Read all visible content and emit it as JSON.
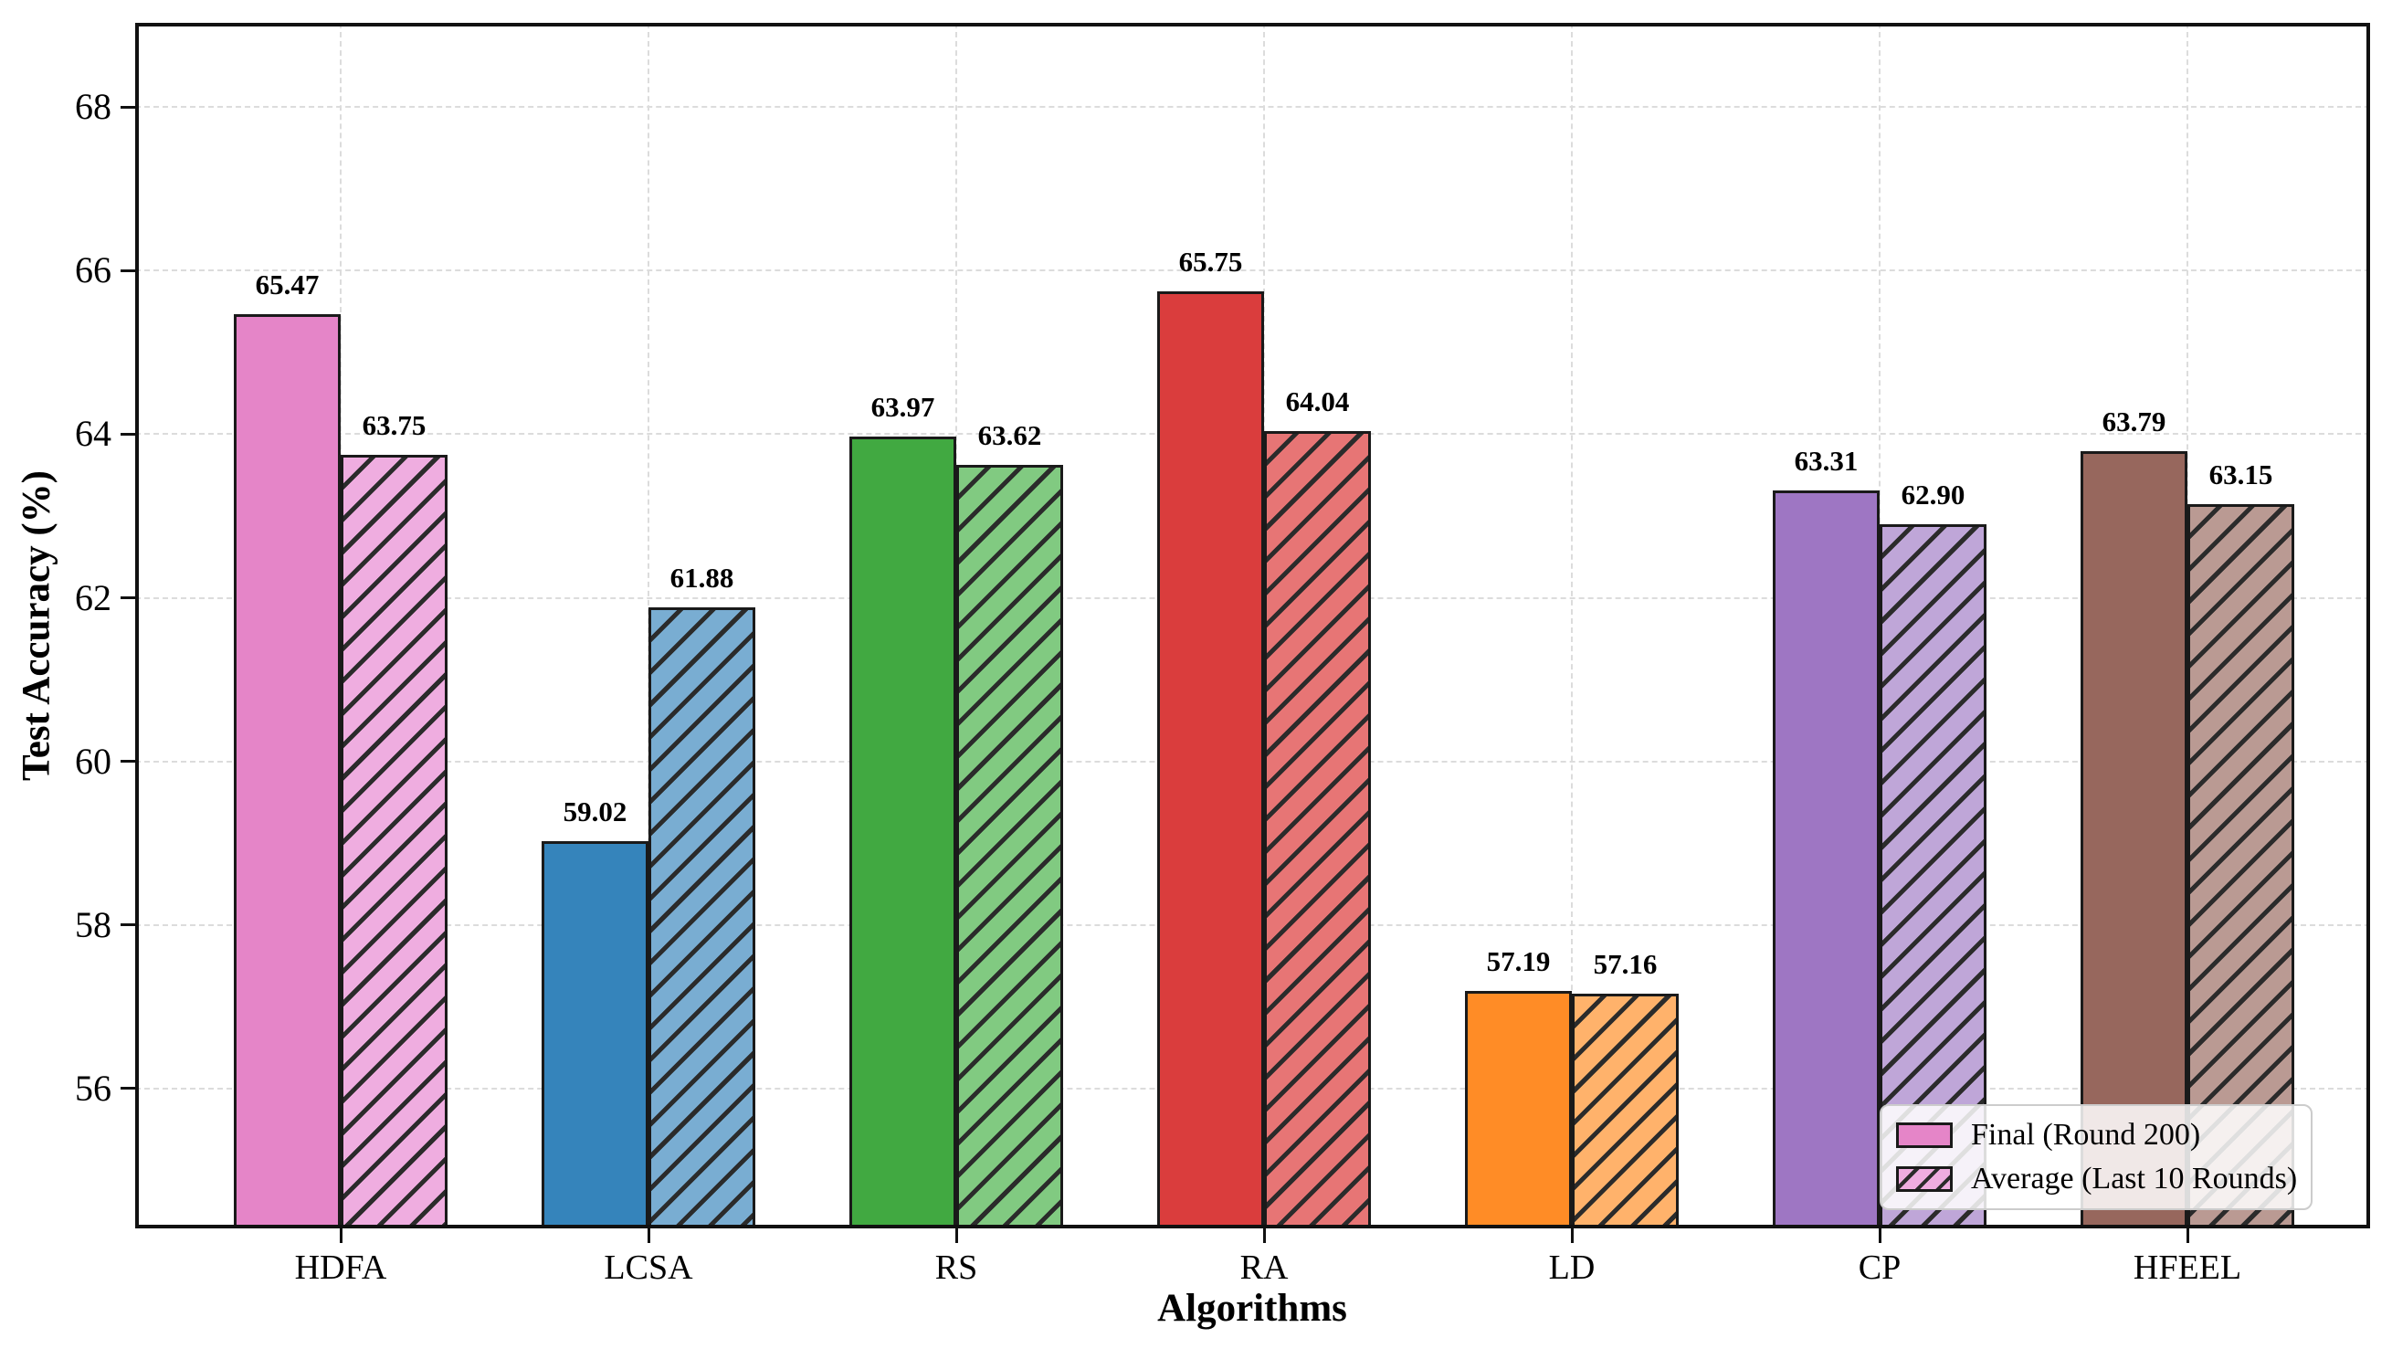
{
  "chart_data": {
    "type": "bar",
    "title": "",
    "xlabel": "Algorithms",
    "ylabel": "Test Accuracy (%)",
    "categories": [
      "HDFA",
      "LCSA",
      "RS",
      "RA",
      "LD",
      "CP",
      "HFEEL"
    ],
    "series": [
      {
        "name": "Final (Round 200)",
        "style": "solid",
        "hatch": "none",
        "values": [
          65.47,
          59.02,
          63.97,
          65.75,
          57.19,
          63.31,
          63.79
        ]
      },
      {
        "name": "Average (Last 10 Rounds)",
        "style": "hatched",
        "hatch": "//",
        "values": [
          63.75,
          61.88,
          63.62,
          64.04,
          57.16,
          62.9,
          63.15
        ]
      }
    ],
    "value_labels": true,
    "value_label_format": "2 decimals",
    "yticks": [
      56,
      58,
      60,
      62,
      64,
      66,
      68
    ],
    "ylim": [
      54.29,
      69.03
    ],
    "grid": "dashed, both axes, light gray",
    "legend_position": "lower right",
    "colors": {
      "solid": [
        "#e585c8",
        "#3584bb",
        "#41a941",
        "#da3d3d",
        "#ff8c26",
        "#9e76c3",
        "#97675d"
      ],
      "hatched": [
        "#efade0",
        "#79add2",
        "#81ca81",
        "#e77575",
        "#ffb26b",
        "#bfa6d8",
        "#ba9a93"
      ],
      "bar_edge": "#1a1a1a",
      "hatch_line": "#2b2b2b",
      "grid": "#dcdcdc",
      "axis": "#111111",
      "legend_border": "#cccccc"
    }
  }
}
